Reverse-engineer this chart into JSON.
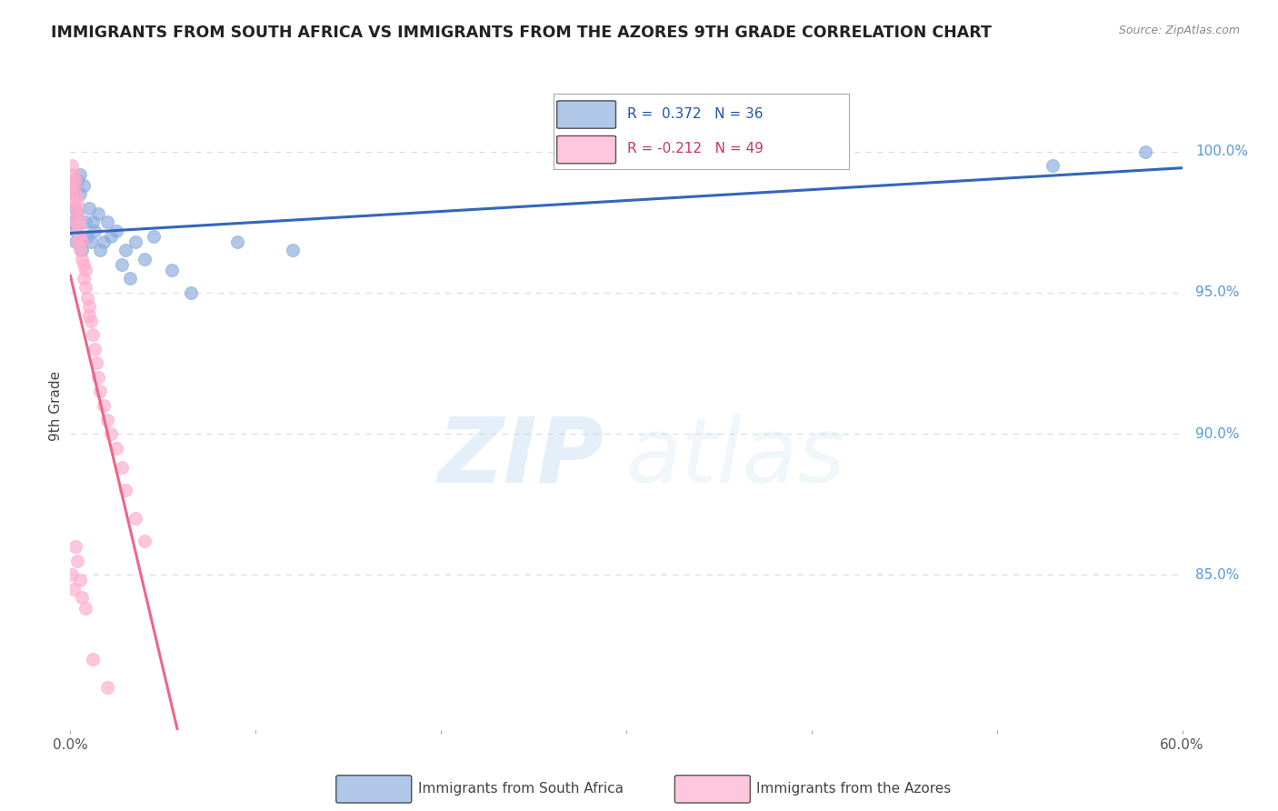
{
  "title": "IMMIGRANTS FROM SOUTH AFRICA VS IMMIGRANTS FROM THE AZORES 9TH GRADE CORRELATION CHART",
  "source": "Source: ZipAtlas.com",
  "ylabel": "9th Grade",
  "yticks": [
    0.85,
    0.9,
    0.95,
    1.0
  ],
  "ytick_labels": [
    "85.0%",
    "90.0%",
    "95.0%",
    "100.0%"
  ],
  "xlim": [
    0.0,
    0.6
  ],
  "ylim": [
    0.795,
    1.025
  ],
  "legend_R1": "R =  0.372",
  "legend_N1": "N = 36",
  "legend_R2": "R = -0.212",
  "legend_N2": "N = 49",
  "blue_scatter_x": [
    0.001,
    0.002,
    0.002,
    0.003,
    0.003,
    0.004,
    0.004,
    0.005,
    0.005,
    0.006,
    0.006,
    0.007,
    0.008,
    0.009,
    0.01,
    0.011,
    0.012,
    0.013,
    0.015,
    0.016,
    0.018,
    0.02,
    0.022,
    0.025,
    0.028,
    0.03,
    0.032,
    0.035,
    0.04,
    0.045,
    0.055,
    0.065,
    0.09,
    0.12,
    0.53,
    0.58
  ],
  "blue_scatter_y": [
    0.975,
    0.98,
    0.985,
    0.972,
    0.968,
    0.978,
    0.99,
    0.985,
    0.992,
    0.97,
    0.965,
    0.988,
    0.975,
    0.97,
    0.98,
    0.968,
    0.975,
    0.972,
    0.978,
    0.965,
    0.968,
    0.975,
    0.97,
    0.972,
    0.96,
    0.965,
    0.955,
    0.968,
    0.962,
    0.97,
    0.958,
    0.95,
    0.968,
    0.965,
    0.995,
    1.0
  ],
  "pink_scatter_x": [
    0.001,
    0.001,
    0.001,
    0.002,
    0.002,
    0.002,
    0.003,
    0.003,
    0.003,
    0.003,
    0.004,
    0.004,
    0.004,
    0.004,
    0.005,
    0.005,
    0.005,
    0.006,
    0.006,
    0.007,
    0.007,
    0.008,
    0.008,
    0.009,
    0.01,
    0.01,
    0.011,
    0.012,
    0.013,
    0.014,
    0.015,
    0.016,
    0.018,
    0.02,
    0.022,
    0.025,
    0.028,
    0.03,
    0.035,
    0.04,
    0.001,
    0.002,
    0.003,
    0.004,
    0.005,
    0.006,
    0.008,
    0.012,
    0.02
  ],
  "pink_scatter_y": [
    0.995,
    0.99,
    0.985,
    0.992,
    0.988,
    0.983,
    0.99,
    0.985,
    0.98,
    0.975,
    0.982,
    0.978,
    0.972,
    0.968,
    0.975,
    0.97,
    0.965,
    0.968,
    0.962,
    0.96,
    0.955,
    0.958,
    0.952,
    0.948,
    0.945,
    0.942,
    0.94,
    0.935,
    0.93,
    0.925,
    0.92,
    0.915,
    0.91,
    0.905,
    0.9,
    0.895,
    0.888,
    0.88,
    0.87,
    0.862,
    0.85,
    0.845,
    0.86,
    0.855,
    0.848,
    0.842,
    0.838,
    0.82,
    0.81
  ],
  "blue_color": "#88AADD",
  "pink_color": "#FFAACC",
  "blue_line_color": "#3366BB",
  "pink_line_color": "#EE6688",
  "pink_extrapolate_color": "#CCCCCC",
  "watermark_zip_color": "#AACCEE",
  "watermark_atlas_color": "#BBDDEE",
  "background_color": "#FFFFFF",
  "grid_color": "#DDDDDD",
  "ytick_color": "#5599DD",
  "title_color": "#222222",
  "source_color": "#888888"
}
